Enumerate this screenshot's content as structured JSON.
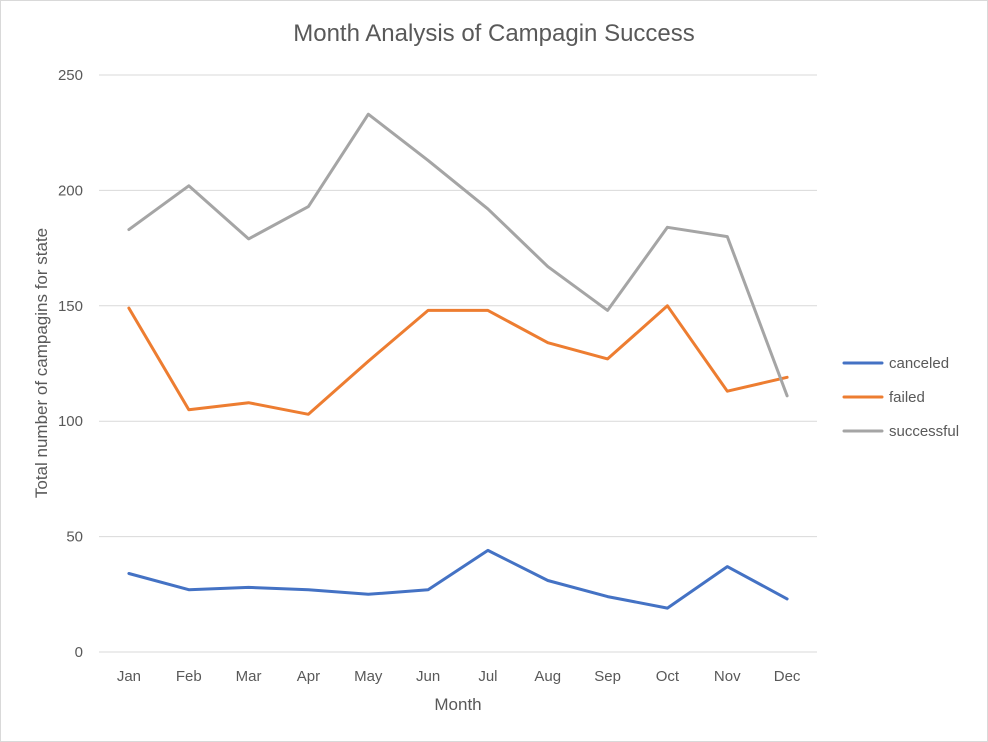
{
  "chart_data": {
    "type": "line",
    "title": "Month Analysis of Campagin Success",
    "xlabel": "Month",
    "ylabel": "Total number of campagins for state",
    "categories": [
      "Jan",
      "Feb",
      "Mar",
      "Apr",
      "May",
      "Jun",
      "Jul",
      "Aug",
      "Sep",
      "Oct",
      "Nov",
      "Dec"
    ],
    "ylim": [
      0,
      250
    ],
    "yticks": [
      "0",
      "50",
      "100",
      "150",
      "200",
      "250"
    ],
    "grid": true,
    "legend_position": "right",
    "series": [
      {
        "name": "canceled",
        "color": "#4472c4",
        "values": [
          34,
          27,
          28,
          27,
          25,
          27,
          44,
          31,
          24,
          19,
          37,
          23
        ]
      },
      {
        "name": "failed",
        "color": "#ed7d31",
        "values": [
          149,
          105,
          108,
          103,
          126,
          148,
          148,
          134,
          127,
          150,
          113,
          119
        ]
      },
      {
        "name": "successful",
        "color": "#a5a5a5",
        "values": [
          183,
          202,
          179,
          193,
          233,
          213,
          192,
          167,
          148,
          184,
          180,
          111
        ]
      }
    ]
  }
}
